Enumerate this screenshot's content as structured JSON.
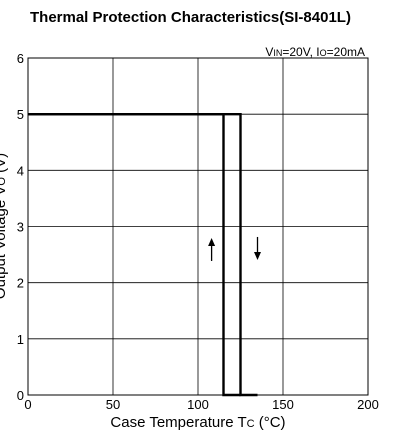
{
  "chart_data": {
    "type": "line",
    "title": "Thermal Protection Characteristics(SI-8401L)",
    "condition": {
      "vin_main": "V",
      "vin_sub": "IN",
      "vin_value": "=20V, ",
      "io_main": "I",
      "io_sub": "O",
      "io_value": "=20mA"
    },
    "xlabel": {
      "main": "Case Temperature T",
      "sub": "C",
      "unit": " (°C)"
    },
    "ylabel": {
      "main": "Output Voltage V",
      "sub": "O",
      "unit": " (V)"
    },
    "xlim": [
      0,
      200
    ],
    "ylim": [
      0,
      6
    ],
    "xticks": [
      0,
      50,
      100,
      150,
      200
    ],
    "yticks": [
      0,
      1,
      2,
      3,
      4,
      5,
      6
    ],
    "grid": true,
    "series": [
      {
        "points": [
          [
            0,
            5
          ],
          [
            125,
            5
          ],
          [
            125,
            0
          ],
          [
            135,
            0
          ]
        ]
      },
      {
        "points": [
          [
            0,
            5
          ],
          [
            115,
            5
          ],
          [
            115,
            0
          ],
          [
            125,
            0
          ]
        ]
      }
    ],
    "annotations": [
      {
        "symbol": "arrow-up",
        "x": 108,
        "y": 2.6
      },
      {
        "symbol": "arrow-down",
        "x": 135,
        "y": 2.6
      }
    ]
  }
}
